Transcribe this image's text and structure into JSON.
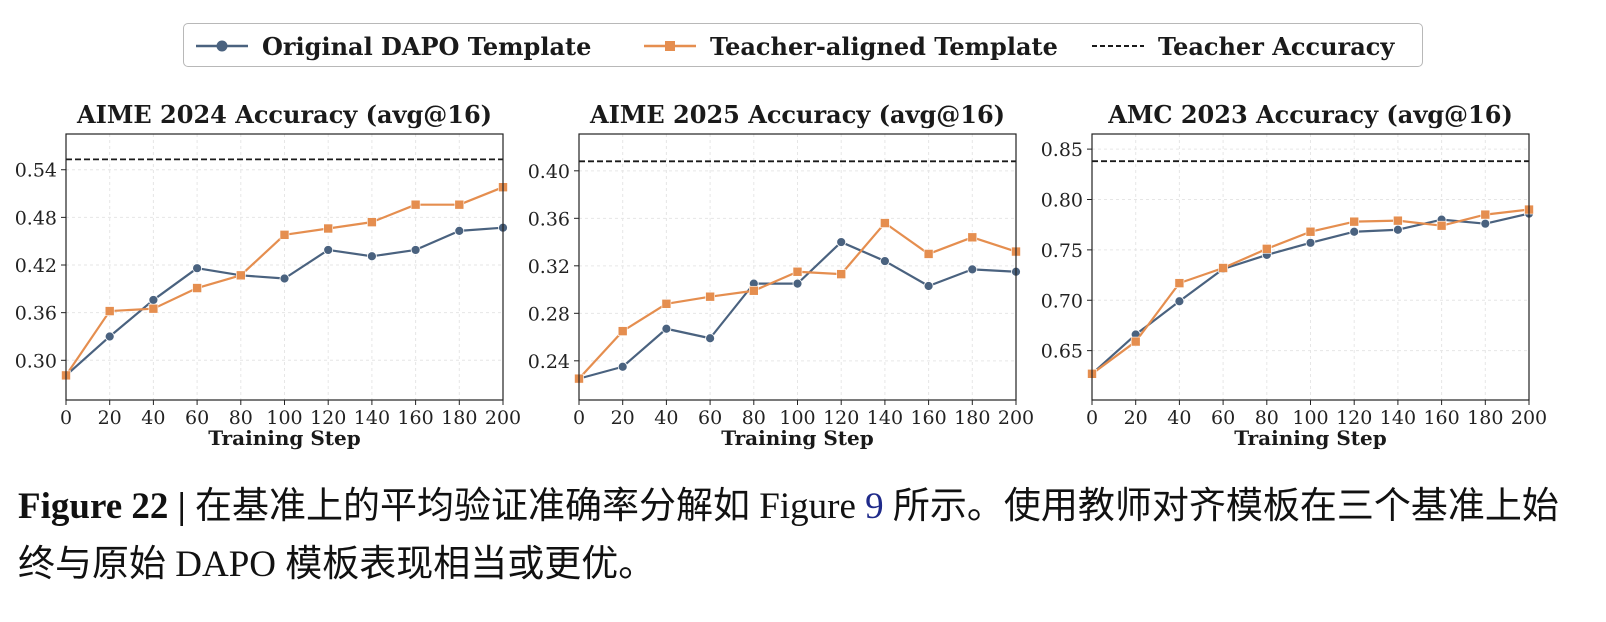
{
  "legend": {
    "items": [
      {
        "label": "Original DAPO Template",
        "color": "#4a627f",
        "marker": "circle",
        "dashed": false
      },
      {
        "label": "Teacher-aligned Template",
        "color": "#e58e4f",
        "marker": "square",
        "dashed": false
      },
      {
        "label": "Teacher Accuracy",
        "color": "#1a1a1a",
        "marker": "none",
        "dashed": true
      }
    ]
  },
  "chart_data": [
    {
      "type": "line",
      "title": "AIME 2024 Accuracy (avg@16)",
      "xlabel": "Training Step",
      "ylabel": "",
      "x": [
        0,
        20,
        40,
        60,
        80,
        100,
        120,
        140,
        160,
        180,
        200
      ],
      "xticks": [
        "0",
        "20",
        "40",
        "60",
        "80",
        "100",
        "120",
        "140",
        "160",
        "180",
        "200"
      ],
      "yticks": [
        "0.30",
        "0.36",
        "0.42",
        "0.48",
        "0.54"
      ],
      "xlim": [
        0,
        200
      ],
      "ylim": [
        0.25,
        0.585
      ],
      "grid": true,
      "series": [
        {
          "name": "Original DAPO Template",
          "values": [
            0.281,
            0.33,
            0.376,
            0.416,
            0.407,
            0.403,
            0.439,
            0.431,
            0.439,
            0.463,
            0.467
          ]
        },
        {
          "name": "Teacher-aligned Template",
          "values": [
            0.281,
            0.362,
            0.365,
            0.391,
            0.407,
            0.458,
            0.466,
            0.474,
            0.496,
            0.496,
            0.518
          ]
        }
      ],
      "reference_line": {
        "name": "Teacher Accuracy",
        "value": 0.553
      }
    },
    {
      "type": "line",
      "title": "AIME 2025 Accuracy (avg@16)",
      "xlabel": "Training Step",
      "ylabel": "",
      "x": [
        0,
        20,
        40,
        60,
        80,
        100,
        120,
        140,
        160,
        180,
        200
      ],
      "xticks": [
        "0",
        "20",
        "40",
        "60",
        "80",
        "100",
        "120",
        "140",
        "160",
        "180",
        "200"
      ],
      "yticks": [
        "0.24",
        "0.28",
        "0.32",
        "0.36",
        "0.40"
      ],
      "xlim": [
        0,
        200
      ],
      "ylim": [
        0.207,
        0.431
      ],
      "grid": true,
      "series": [
        {
          "name": "Original DAPO Template",
          "values": [
            0.225,
            0.235,
            0.267,
            0.259,
            0.305,
            0.305,
            0.34,
            0.324,
            0.303,
            0.317,
            0.315
          ]
        },
        {
          "name": "Teacher-aligned Template",
          "values": [
            0.225,
            0.265,
            0.288,
            0.294,
            0.299,
            0.315,
            0.313,
            0.356,
            0.33,
            0.344,
            0.332
          ]
        }
      ],
      "reference_line": {
        "name": "Teacher Accuracy",
        "value": 0.408
      }
    },
    {
      "type": "line",
      "title": "AMC 2023 Accuracy (avg@16)",
      "xlabel": "Training Step",
      "ylabel": "",
      "x": [
        0,
        20,
        40,
        60,
        80,
        100,
        120,
        140,
        160,
        180,
        200
      ],
      "xticks": [
        "0",
        "20",
        "40",
        "60",
        "80",
        "100",
        "120",
        "140",
        "160",
        "180",
        "200"
      ],
      "yticks": [
        "0.65",
        "0.70",
        "0.75",
        "0.80",
        "0.85"
      ],
      "xlim": [
        0,
        200
      ],
      "ylim": [
        0.601,
        0.865
      ],
      "grid": true,
      "series": [
        {
          "name": "Original DAPO Template",
          "values": [
            0.627,
            0.666,
            0.699,
            0.731,
            0.745,
            0.757,
            0.768,
            0.77,
            0.78,
            0.776,
            0.786
          ]
        },
        {
          "name": "Teacher-aligned Template",
          "values": [
            0.627,
            0.659,
            0.717,
            0.732,
            0.751,
            0.768,
            0.778,
            0.779,
            0.774,
            0.785,
            0.79
          ]
        }
      ],
      "reference_line": {
        "name": "Teacher Accuracy",
        "value": 0.838
      }
    }
  ],
  "caption": {
    "label": "Figure 22 |",
    "text_before_ref": " 在基准上的平均验证准确率分解如 Figure ",
    "ref": "9",
    "text_after_ref": " 所示。使用教师对齐模板在三个基准上始终与原始 DAPO 模板表现相当或更优。"
  }
}
